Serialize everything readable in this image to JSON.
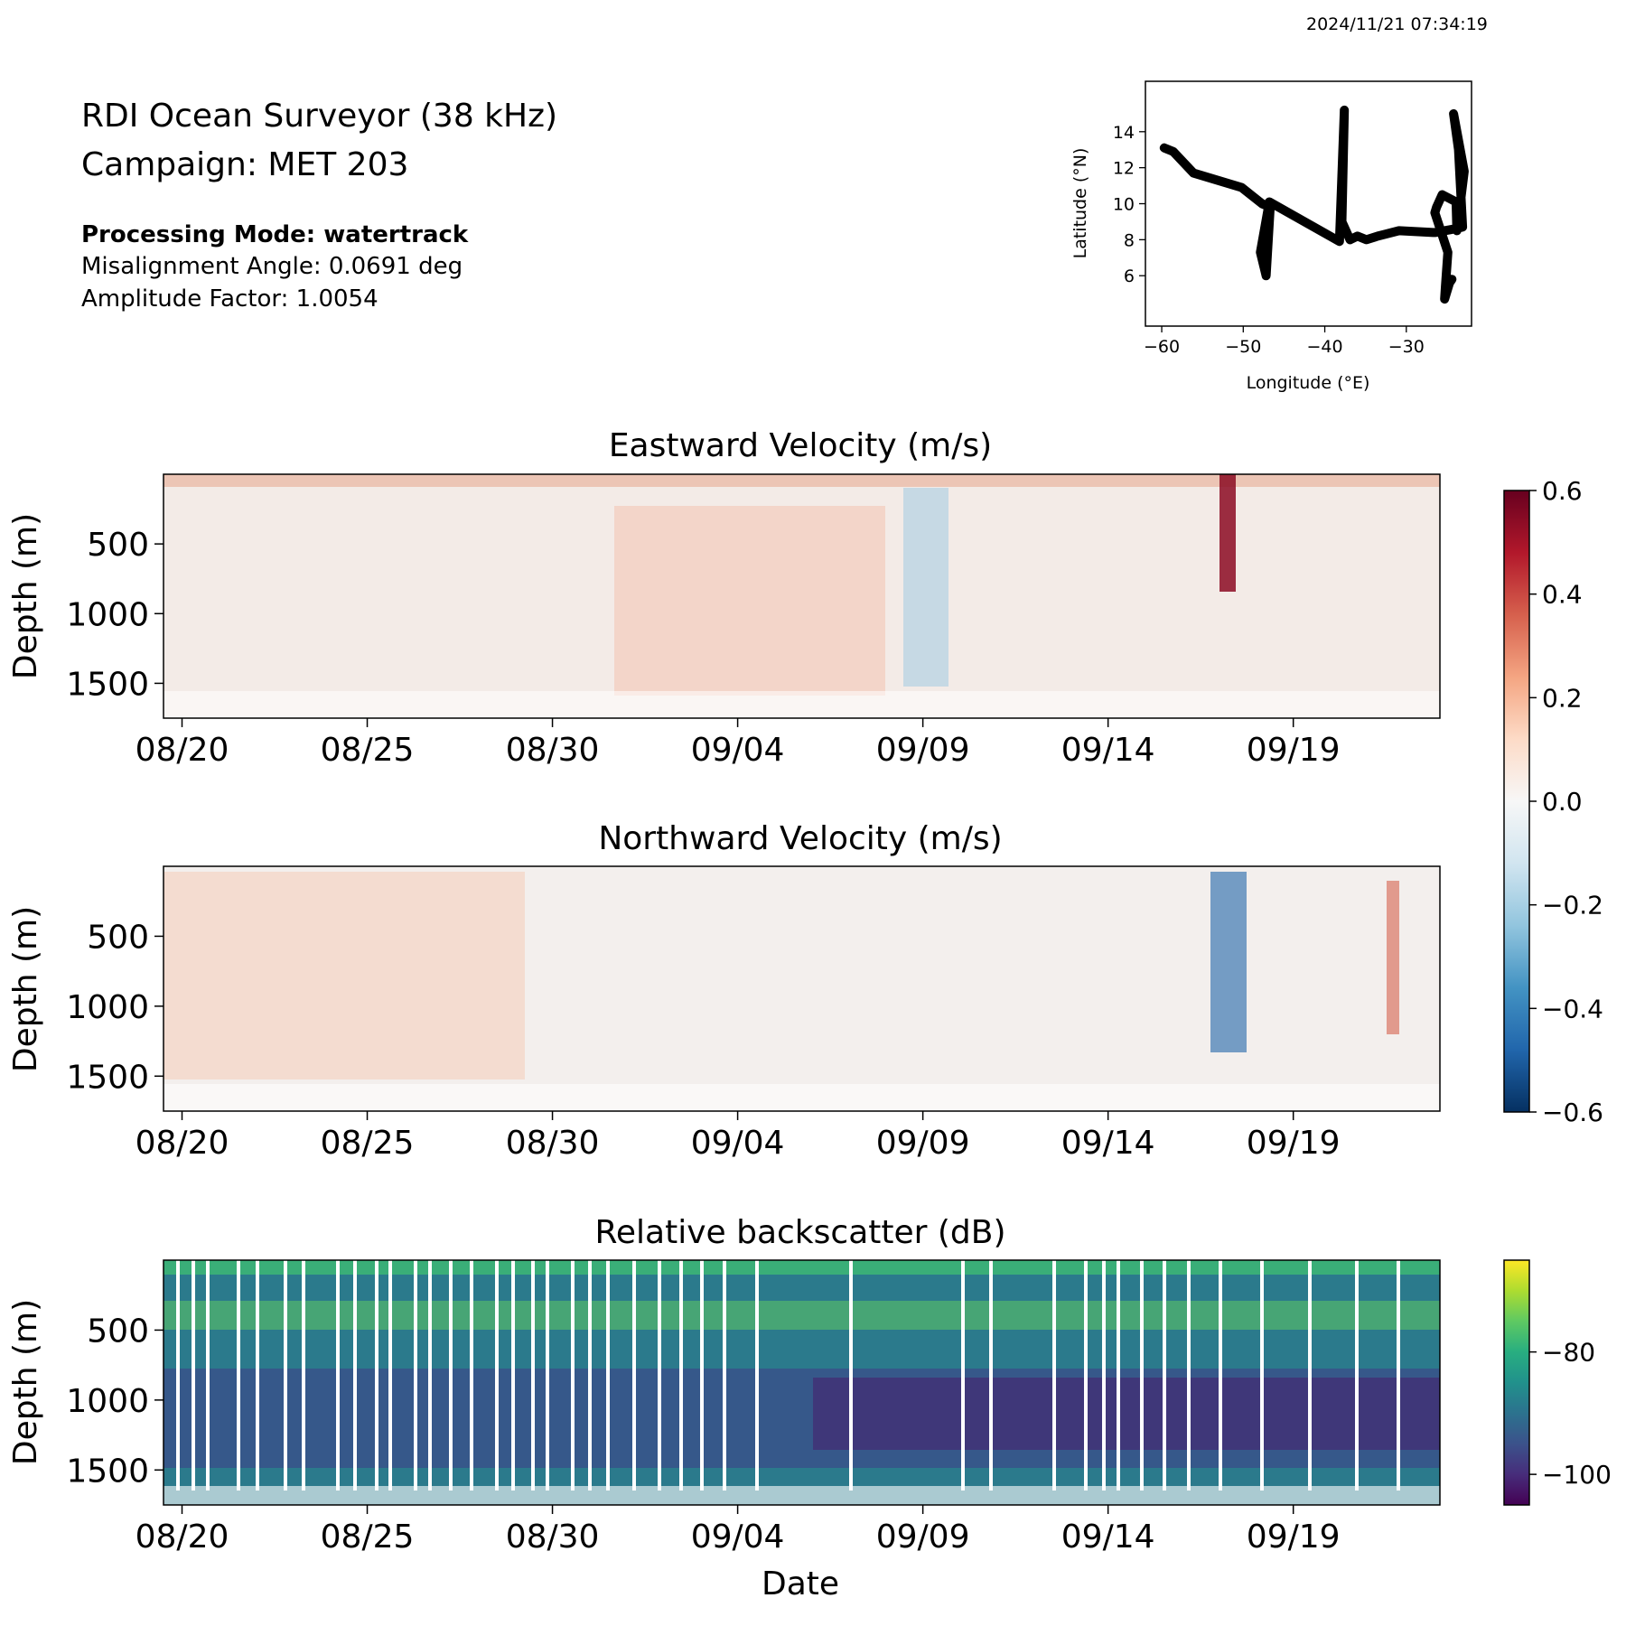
{
  "timestamp": "2024/11/21 07:34:19",
  "header": {
    "instrument": "RDI Ocean Surveyor (38 kHz)",
    "campaign": "Campaign: MET 203",
    "processing_mode": "Processing Mode: watertrack",
    "misalignment": "Misalignment Angle: 0.0691 deg",
    "amplitude": "Amplitude Factor: 1.0054"
  },
  "chart_data": [
    {
      "id": "track",
      "type": "line",
      "xlabel": "Longitude (°E)",
      "ylabel": "Latitude (°N)",
      "xlim": [
        -62,
        -22
      ],
      "ylim": [
        3.2,
        16.8
      ],
      "xticks": [
        -60,
        -50,
        -40,
        -30
      ],
      "xtick_labels": [
        "−60",
        "−50",
        "−40",
        "−30"
      ],
      "yticks": [
        6,
        8,
        10,
        12,
        14
      ],
      "ytick_labels": [
        "6",
        "8",
        "10",
        "12",
        "14"
      ],
      "color": "#000000",
      "lon": [
        -59.7,
        -58.6,
        -56.1,
        -50.2,
        -47.7,
        -46.7,
        -47.2,
        -47.9,
        -46.8,
        -38.2,
        -37.6,
        -37.9,
        -36.9,
        -36.0,
        -34.9,
        -33.5,
        -30.9,
        -26.7,
        -26.5,
        -25.3,
        -24.1,
        -23.1,
        -23.6,
        -24.2,
        -22.9,
        -23.8,
        -23.9,
        -25.6,
        -26.3,
        -26.5,
        -24.9,
        -25.2,
        -25.3,
        -24.7,
        -24.4
      ],
      "lat": [
        13.1,
        12.9,
        11.7,
        10.9,
        10.0,
        9.8,
        6.0,
        7.3,
        10.1,
        7.9,
        15.2,
        9.0,
        8.0,
        8.2,
        8.0,
        8.2,
        8.5,
        8.4,
        8.4,
        8.5,
        8.6,
        8.7,
        13.0,
        15.0,
        11.8,
        8.5,
        10.1,
        10.5,
        9.8,
        9.5,
        7.3,
        5.4,
        4.7,
        5.6,
        5.8
      ]
    },
    {
      "id": "east",
      "type": "heatmap",
      "title": "Eastward Velocity (m/s)",
      "ylabel": "Depth (m)",
      "xlim": [
        "2024-08-19T12:00",
        "2024-09-22T23:00"
      ],
      "ylim": [
        1750,
        0
      ],
      "xtick_labels": [
        "08/20",
        "08/25",
        "08/30",
        "09/04",
        "09/09",
        "09/14",
        "09/19"
      ],
      "xtick_dates": [
        "2024-08-20",
        "2024-08-25",
        "2024-08-30",
        "2024-09-04",
        "2024-09-09",
        "2024-09-14",
        "2024-09-19"
      ],
      "yticks": [
        500,
        1000,
        1500
      ],
      "ytick_labels": [
        "500",
        "1000",
        "1500"
      ],
      "colormap": "RdBu_r",
      "clim": [
        -0.6,
        0.6
      ]
    },
    {
      "id": "north",
      "type": "heatmap",
      "title": "Northward Velocity (m/s)",
      "ylabel": "Depth (m)",
      "xlim": [
        "2024-08-19T12:00",
        "2024-09-22T23:00"
      ],
      "ylim": [
        1750,
        0
      ],
      "xtick_labels": [
        "08/20",
        "08/25",
        "08/30",
        "09/04",
        "09/09",
        "09/14",
        "09/19"
      ],
      "xtick_dates": [
        "2024-08-20",
        "2024-08-25",
        "2024-08-30",
        "2024-09-04",
        "2024-09-09",
        "2024-09-14",
        "2024-09-19"
      ],
      "yticks": [
        500,
        1000,
        1500
      ],
      "ytick_labels": [
        "500",
        "1000",
        "1500"
      ],
      "colormap": "RdBu_r",
      "clim": [
        -0.6,
        0.6
      ]
    },
    {
      "id": "backscatter",
      "type": "heatmap",
      "title": "Relative backscatter (dB)",
      "xlabel": "Date",
      "ylabel": "Depth (m)",
      "xlim": [
        "2024-08-19T12:00",
        "2024-09-22T23:00"
      ],
      "ylim": [
        1750,
        0
      ],
      "xtick_labels": [
        "08/20",
        "08/25",
        "08/30",
        "09/04",
        "09/09",
        "09/14",
        "09/19"
      ],
      "xtick_dates": [
        "2024-08-20",
        "2024-08-25",
        "2024-08-30",
        "2024-09-04",
        "2024-09-09",
        "2024-09-14",
        "2024-09-19"
      ],
      "yticks": [
        500,
        1000,
        1500
      ],
      "ytick_labels": [
        "500",
        "1000",
        "1500"
      ],
      "colormap": "viridis",
      "clim": [
        -105,
        -65
      ]
    }
  ],
  "colorbars": {
    "velocity": {
      "ticks": [
        0.6,
        0.4,
        0.2,
        0.0,
        -0.2,
        -0.4,
        -0.6
      ],
      "tick_labels": [
        "0.6",
        "0.4",
        "0.2",
        "0.0",
        "−0.2",
        "−0.4",
        "−0.6"
      ],
      "colormap": "RdBu_r"
    },
    "backscatter": {
      "ticks": [
        -80,
        -100
      ],
      "tick_labels": [
        "−80",
        "−100"
      ],
      "colormap": "viridis"
    }
  }
}
